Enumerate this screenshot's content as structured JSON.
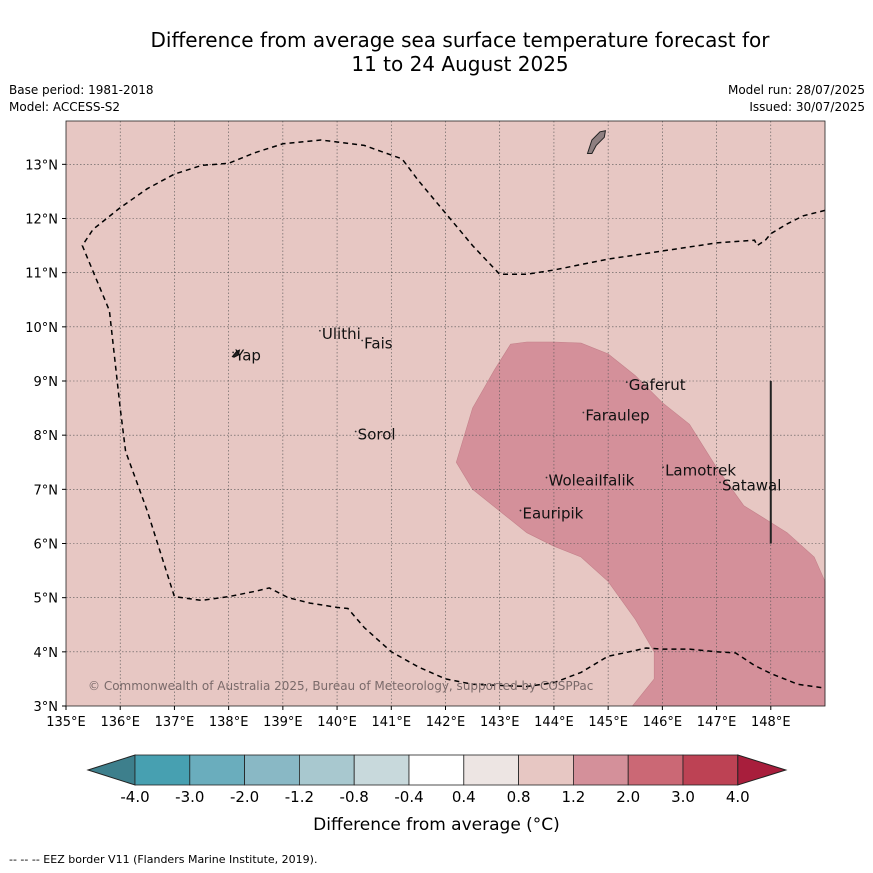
{
  "title_line1": "Difference from average sea surface temperature forecast for",
  "title_line2": "11 to 24 August 2025",
  "meta_left": [
    "Base period: 1981-2018",
    "Model: ACCESS-S2"
  ],
  "meta_right": [
    "Model run: 28/07/2025",
    "Issued: 30/07/2025"
  ],
  "map": {
    "lon_range": [
      135,
      149
    ],
    "lat_range": [
      3,
      13.8
    ],
    "lon_ticks": [
      "135°E",
      "136°E",
      "137°E",
      "138°E",
      "139°E",
      "140°E",
      "141°E",
      "142°E",
      "143°E",
      "144°E",
      "145°E",
      "146°E",
      "147°E",
      "148°E"
    ],
    "lat_ticks": [
      "3°N",
      "4°N",
      "5°N",
      "6°N",
      "7°N",
      "8°N",
      "9°N",
      "10°N",
      "11°N",
      "12°N",
      "13°N"
    ],
    "background_color": "#e7c7c3",
    "anomaly_color": "#d4909a",
    "copyright": "© Commonwealth of Australia 2025, Bureau of Meteorology, supported by COSPPac",
    "places": [
      {
        "name": "Ulithi",
        "lon": 139.72,
        "lat": 9.78
      },
      {
        "name": "Fais",
        "lon": 140.5,
        "lat": 9.6
      },
      {
        "name": "Yap",
        "lon": 138.12,
        "lat": 9.38
      },
      {
        "name": "Sorol",
        "lon": 140.38,
        "lat": 7.92
      },
      {
        "name": "Gaferut",
        "lon": 145.38,
        "lat": 8.83
      },
      {
        "name": "Faraulep",
        "lon": 144.58,
        "lat": 8.27
      },
      {
        "name": "Woleai",
        "lon": 143.9,
        "lat": 7.07
      },
      {
        "name": "Ifalik",
        "lon": 144.82,
        "lat": 7.07
      },
      {
        "name": "Lamotrek",
        "lon": 146.05,
        "lat": 7.26
      },
      {
        "name": "Satawal",
        "lon": 147.1,
        "lat": 6.98
      },
      {
        "name": "Eauripik",
        "lon": 143.42,
        "lat": 6.46
      }
    ]
  },
  "colorbar": {
    "labels": [
      "-4.0",
      "-3.0",
      "-2.0",
      "-1.2",
      "-0.8",
      "-0.4",
      "0.4",
      "0.8",
      "1.2",
      "2.0",
      "3.0",
      "4.0"
    ],
    "colors": [
      "#3d7f8c",
      "#47a0b1",
      "#6aadbd",
      "#89b8c5",
      "#a8c8cf",
      "#c8d9dc",
      "#ffffff",
      "#ede5e3",
      "#e7c7c3",
      "#d4909a",
      "#cb6875",
      "#bd4254",
      "#a81e3c"
    ],
    "title": "Difference from average (°C)"
  },
  "footer": "--  --  -- EEZ border V11 (Flanders Marine Institute, 2019)."
}
